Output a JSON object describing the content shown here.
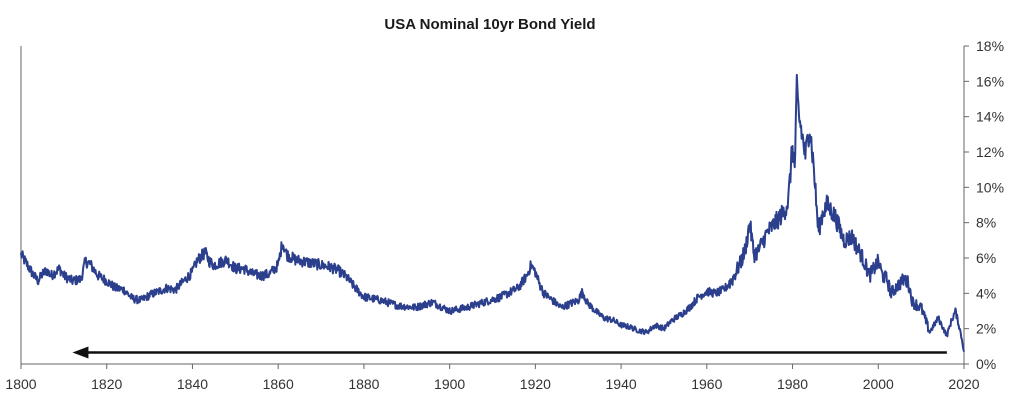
{
  "chart_data": {
    "type": "line",
    "title": "USA Nominal 10yr Bond Yield",
    "xlabel": "",
    "ylabel": "",
    "xlim": [
      1800,
      2020
    ],
    "ylim": [
      0,
      18
    ],
    "grid": false,
    "x_ticks": [
      1800,
      1820,
      1840,
      1860,
      1880,
      1900,
      1920,
      1940,
      1960,
      1980,
      2000,
      2020
    ],
    "y_ticks": [
      {
        "value": 0,
        "label": "0%"
      },
      {
        "value": 2,
        "label": "2%"
      },
      {
        "value": 4,
        "label": "4%"
      },
      {
        "value": 6,
        "label": "6%"
      },
      {
        "value": 8,
        "label": "8%"
      },
      {
        "value": 10,
        "label": "10%"
      },
      {
        "value": 12,
        "label": "12%"
      },
      {
        "value": 14,
        "label": "14%"
      },
      {
        "value": 16,
        "label": "16%"
      },
      {
        "value": 18,
        "label": "18%"
      }
    ],
    "series": [
      {
        "name": "USA Nominal 10yr Bond Yield",
        "color": "#2b3f8c",
        "x": [
          1800,
          1801,
          1802,
          1803,
          1804,
          1805,
          1806,
          1807,
          1808,
          1809,
          1810,
          1812,
          1814,
          1815,
          1816,
          1818,
          1820,
          1822,
          1824,
          1826,
          1828,
          1830,
          1832,
          1834,
          1836,
          1838,
          1840,
          1841,
          1842,
          1843,
          1844,
          1845,
          1846,
          1848,
          1850,
          1852,
          1854,
          1856,
          1858,
          1860,
          1861,
          1862,
          1864,
          1866,
          1868,
          1870,
          1872,
          1874,
          1876,
          1878,
          1880,
          1884,
          1888,
          1892,
          1896,
          1900,
          1904,
          1908,
          1912,
          1916,
          1918,
          1919,
          1920,
          1921,
          1922,
          1924,
          1926,
          1928,
          1930,
          1931,
          1932,
          1934,
          1936,
          1938,
          1940,
          1942,
          1944,
          1946,
          1948,
          1950,
          1952,
          1954,
          1956,
          1958,
          1960,
          1962,
          1964,
          1966,
          1968,
          1969,
          1970,
          1971,
          1972,
          1974,
          1976,
          1978,
          1979,
          1980,
          1980.5,
          1981,
          1981.5,
          1982,
          1983,
          1984,
          1985,
          1986,
          1987,
          1988,
          1989,
          1990,
          1992,
          1994,
          1995,
          1996,
          1998,
          2000,
          2001,
          2002,
          2003,
          2004,
          2006,
          2007,
          2008,
          2010,
          2012,
          2014,
          2016,
          2017,
          2018,
          2019,
          2019.5,
          2020
        ],
        "values": [
          6.2,
          5.8,
          5.4,
          5.0,
          4.7,
          5.1,
          5.3,
          5.0,
          5.2,
          5.4,
          5.0,
          4.7,
          4.8,
          5.8,
          5.7,
          5.0,
          4.7,
          4.3,
          4.2,
          3.7,
          3.6,
          3.9,
          4.1,
          4.3,
          4.2,
          4.7,
          5.2,
          5.8,
          6.1,
          6.3,
          5.8,
          5.6,
          5.7,
          5.9,
          5.4,
          5.4,
          5.1,
          5.0,
          5.1,
          5.6,
          6.9,
          6.2,
          5.9,
          5.8,
          5.7,
          5.6,
          5.5,
          5.3,
          4.9,
          4.3,
          3.8,
          3.6,
          3.3,
          3.2,
          3.5,
          3.0,
          3.2,
          3.5,
          3.8,
          4.3,
          5.0,
          5.6,
          5.2,
          4.5,
          4.0,
          3.6,
          3.2,
          3.4,
          3.6,
          4.1,
          3.5,
          3.0,
          2.6,
          2.5,
          2.2,
          2.1,
          1.9,
          1.8,
          2.2,
          2.0,
          2.5,
          2.8,
          3.2,
          3.8,
          4.1,
          4.0,
          4.2,
          4.8,
          5.8,
          6.5,
          8.0,
          6.2,
          6.4,
          7.4,
          8.0,
          8.6,
          9.2,
          12.4,
          11.0,
          15.5,
          14.0,
          13.3,
          11.8,
          13.5,
          11.0,
          7.5,
          8.5,
          9.0,
          8.7,
          8.3,
          7.0,
          7.2,
          6.6,
          6.2,
          5.0,
          5.8,
          5.0,
          4.8,
          4.0,
          4.3,
          4.8,
          4.6,
          3.5,
          3.2,
          1.8,
          2.6,
          1.6,
          2.4,
          3.0,
          2.0,
          1.4,
          0.7
        ]
      }
    ],
    "annotations": [
      {
        "type": "arrow",
        "x_from": 2016,
        "x_to": 1812,
        "y": 0.65,
        "color": "#111111"
      }
    ]
  }
}
